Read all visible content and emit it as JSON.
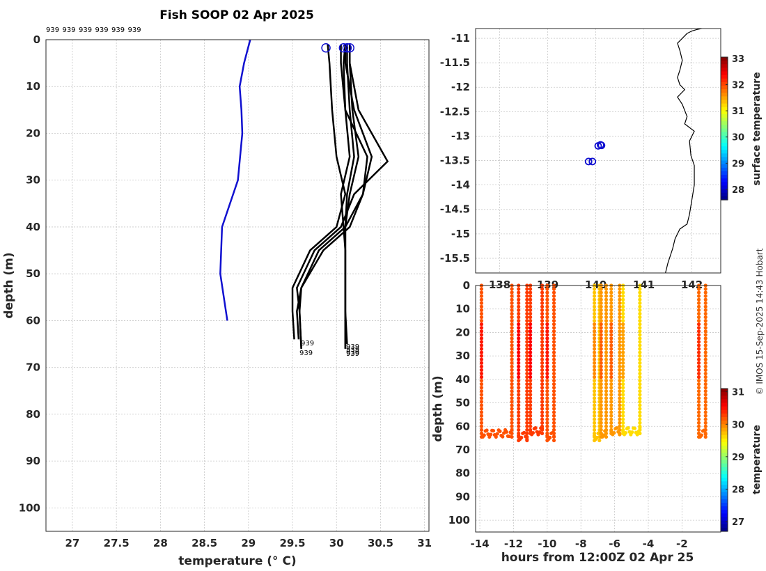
{
  "page": {
    "title": "Fish SOOP 02 Apr 2025",
    "credit": "© IMOS 15-Sep-2025 14:43 Hobart"
  },
  "chart_data": [
    {
      "type": "line",
      "name": "temperature-profiles",
      "xlabel": "temperature (° C)",
      "ylabel": "depth (m)",
      "xlim": [
        26.7,
        31.05
      ],
      "ylim": [
        105,
        0
      ],
      "xticks": [
        "27",
        "27.5",
        "28",
        "28.5",
        "29",
        "29.5",
        "30",
        "30.5",
        "31"
      ],
      "xtick_values": [
        27,
        27.5,
        28,
        28.5,
        29,
        29.5,
        30,
        30.5,
        31
      ],
      "yticks": [
        "0",
        "10",
        "20",
        "30",
        "40",
        "50",
        "60",
        "70",
        "80",
        "90",
        "100"
      ],
      "ytick_values": [
        0,
        10,
        20,
        30,
        40,
        50,
        60,
        70,
        80,
        90,
        100
      ],
      "grid": true,
      "top_labels": [
        "939",
        "939",
        "939",
        "939",
        "939",
        "939"
      ],
      "end_labels": [
        "939",
        "939",
        "939",
        "939",
        "939",
        "939"
      ],
      "climatology": {
        "color": "#1010d0",
        "temp": [
          29.02,
          28.95,
          28.9,
          28.92,
          28.93,
          28.88,
          28.7,
          28.68,
          28.76
        ],
        "depth": [
          0,
          5,
          10,
          15,
          20,
          30,
          40,
          50,
          60
        ]
      },
      "series": [
        {
          "name": "profile-1",
          "temp": [
            29.9,
            29.92,
            29.95,
            30.0,
            30.1,
            30.0,
            29.7,
            29.5,
            29.5,
            29.52
          ],
          "depth": [
            1,
            5,
            15,
            25,
            33,
            40,
            45,
            53,
            58,
            64
          ]
        },
        {
          "name": "profile-2",
          "temp": [
            30.05,
            30.05,
            30.1,
            30.35,
            30.3,
            30.15,
            29.85,
            29.6,
            29.55,
            29.57
          ],
          "depth": [
            1,
            5,
            15,
            25,
            33,
            40,
            45,
            53,
            58,
            64
          ]
        },
        {
          "name": "profile-3",
          "temp": [
            30.1,
            30.1,
            30.2,
            30.4,
            30.3,
            30.1,
            29.8,
            29.6,
            29.58,
            29.6
          ],
          "depth": [
            1,
            5,
            15,
            25,
            33,
            40,
            45,
            53,
            58,
            66
          ]
        },
        {
          "name": "profile-4",
          "temp": [
            30.15,
            30.15,
            30.25,
            30.58,
            30.2,
            30.05,
            29.75,
            29.55,
            29.58,
            29.6
          ],
          "depth": [
            1,
            5,
            15,
            26,
            33,
            40,
            45,
            53,
            58,
            66
          ]
        },
        {
          "name": "profile-5",
          "temp": [
            30.12,
            30.12,
            30.15,
            30.2,
            30.12,
            30.1,
            30.1,
            30.1,
            30.1,
            30.12
          ],
          "depth": [
            1,
            5,
            15,
            25,
            33,
            40,
            45,
            53,
            58,
            65
          ]
        },
        {
          "name": "profile-6",
          "temp": [
            30.15,
            30.15,
            30.18,
            30.25,
            30.15,
            30.1,
            30.1,
            30.1,
            30.1,
            30.1
          ],
          "depth": [
            1,
            5,
            15,
            25,
            33,
            40,
            45,
            53,
            58,
            66
          ]
        },
        {
          "name": "profile-7",
          "temp": [
            30.1,
            30.08,
            30.1,
            30.15,
            30.05,
            30.08,
            30.1,
            30.1,
            30.1,
            30.1
          ],
          "depth": [
            1,
            5,
            15,
            25,
            33,
            40,
            45,
            53,
            58,
            66
          ]
        }
      ],
      "surface_markers": {
        "color": "#1010d0",
        "temp": [
          29.88,
          30.08,
          30.12,
          30.15
        ],
        "depth": [
          1,
          1,
          1,
          1
        ]
      }
    },
    {
      "type": "scatter",
      "name": "location-map",
      "xlim": [
        137.5,
        142.6
      ],
      "ylim": [
        -15.8,
        -10.8
      ],
      "xticks": [
        "138",
        "139",
        "140",
        "141",
        "142"
      ],
      "xtick_values": [
        138,
        139,
        140,
        141,
        142
      ],
      "yticks": [
        "-11",
        "-11.5",
        "-12",
        "-12.5",
        "-13",
        "-13.5",
        "-14",
        "-14.5",
        "-15",
        "-15.5"
      ],
      "ytick_values": [
        -11,
        -11.5,
        -12,
        -12.5,
        -13,
        -13.5,
        -14,
        -14.5,
        -15,
        -15.5
      ],
      "grid": true,
      "points": {
        "color": "#1010d0",
        "lon": [
          140.05,
          140.1,
          140.12,
          139.85,
          139.93
        ],
        "lat": [
          -13.2,
          -13.18,
          -13.19,
          -13.52,
          -13.52
        ]
      },
      "coastline": {
        "lon": [
          141.45,
          141.5,
          141.55,
          141.6,
          141.65,
          141.75,
          141.9,
          141.95,
          142.0,
          142.05,
          142.05,
          141.98,
          141.95,
          142.05,
          141.85,
          141.9,
          141.8,
          141.7,
          141.85,
          141.75,
          141.7,
          141.75,
          141.8,
          141.75,
          141.7,
          141.8,
          141.85,
          141.9,
          142.0,
          142.1,
          142.2
        ],
        "lat": [
          -15.8,
          -15.6,
          -15.45,
          -15.3,
          -15.1,
          -14.9,
          -14.8,
          -14.6,
          -14.3,
          -14.0,
          -13.6,
          -13.4,
          -13.1,
          -12.9,
          -12.75,
          -12.6,
          -12.35,
          -12.2,
          -12.05,
          -11.95,
          -11.8,
          -11.65,
          -11.45,
          -11.25,
          -11.1,
          -11.0,
          -10.95,
          -10.9,
          -10.85,
          -10.82,
          -10.8
        ]
      },
      "colorbar": {
        "label": "surface temperature",
        "range": [
          27.6,
          33.05
        ],
        "ticks": [
          "28",
          "29",
          "30",
          "31",
          "32",
          "33"
        ],
        "tick_values": [
          28,
          29,
          30,
          31,
          32,
          33
        ]
      }
    },
    {
      "type": "scatter",
      "name": "time-depth-section",
      "xlabel": "hours from 12:00Z 02 Apr 25",
      "ylabel": "depth (m)",
      "xlim": [
        -14.25,
        0.3
      ],
      "ylim": [
        105,
        0
      ],
      "xticks": [
        "-14",
        "-12",
        "-10",
        "-8",
        "-6",
        "-4",
        "-2"
      ],
      "xtick_values": [
        -14,
        -12,
        -10,
        -8,
        -6,
        -4,
        -2
      ],
      "yticks": [
        "0",
        "10",
        "20",
        "30",
        "40",
        "50",
        "60",
        "70",
        "80",
        "90",
        "100"
      ],
      "ytick_values": [
        0,
        10,
        20,
        30,
        40,
        50,
        60,
        70,
        80,
        90,
        100
      ],
      "grid": true,
      "casts": [
        {
          "down": -13.9,
          "up": -12.1,
          "bottom": 65,
          "temp": 30.2
        },
        {
          "down": -11.7,
          "up": -11.2,
          "bottom": 66,
          "temp": 30.3
        },
        {
          "down": -11.0,
          "up": -10.3,
          "bottom": 64,
          "temp": 30.3
        },
        {
          "down": -10.0,
          "up": -9.6,
          "bottom": 66,
          "temp": 30.2
        },
        {
          "down": -7.2,
          "up": -6.9,
          "bottom": 66,
          "temp": 29.7
        },
        {
          "down": -6.8,
          "up": -6.5,
          "bottom": 65,
          "temp": 29.9
        },
        {
          "down": -6.2,
          "up": -5.7,
          "bottom": 64,
          "temp": 29.9
        },
        {
          "down": -5.5,
          "up": -4.5,
          "bottom": 64,
          "temp": 29.6
        },
        {
          "down": -1.0,
          "up": -0.6,
          "bottom": 65,
          "temp": 30.1
        }
      ],
      "colorbar": {
        "label": "temperature",
        "range": [
          26.7,
          31.1
        ],
        "ticks": [
          "27",
          "28",
          "29",
          "30",
          "31"
        ],
        "tick_values": [
          27,
          28,
          29,
          30,
          31
        ]
      }
    }
  ]
}
